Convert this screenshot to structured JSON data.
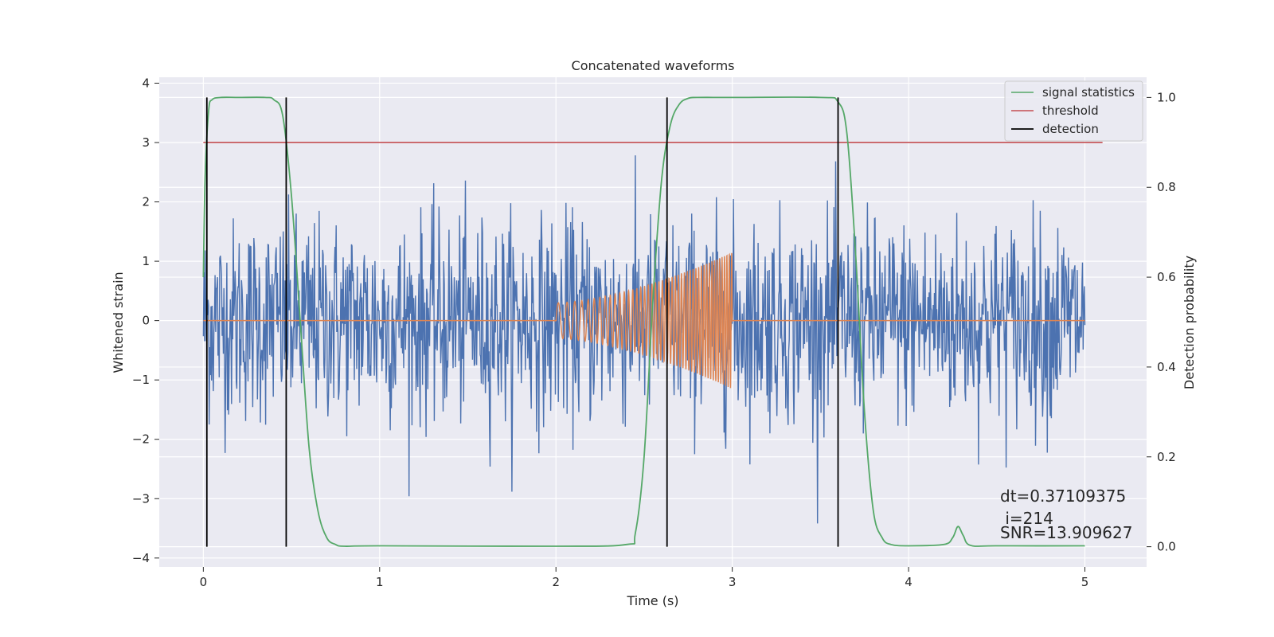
{
  "chart_data": {
    "type": "line",
    "title": "Concatenated waveforms",
    "xlabel": "Time (s)",
    "ylabel": "Whitened strain",
    "y2label": "Detection probability",
    "xlim": [
      -0.25,
      5.35
    ],
    "ylim": [
      -4.15,
      4.1
    ],
    "y2lim": [
      -0.045,
      1.045
    ],
    "xticks": [
      "0",
      "1",
      "2",
      "3",
      "4",
      "5"
    ],
    "yticks": [
      "4",
      "3",
      "2",
      "1",
      "0",
      "−1",
      "−2",
      "−3",
      "−4"
    ],
    "y2ticks": [
      "1.0",
      "0.8",
      "0.6",
      "0.4",
      "0.2",
      "0.0"
    ],
    "grid": true,
    "legend_position": "top-right",
    "series": [
      {
        "name": "",
        "color": "#4c72b0",
        "kind": "noise",
        "x_range": [
          0,
          5
        ],
        "amplitude_std": 0.85,
        "points": 1500
      },
      {
        "name": "",
        "color": "#dd8452",
        "kind": "chirp",
        "x_range": [
          0,
          5
        ],
        "chirp_start": 2.0,
        "chirp_end": 3.0,
        "amplitude_start": 0.3,
        "amplitude_end": 1.15,
        "freq_start": 18,
        "freq_end": 75
      },
      {
        "name": "signal statistics",
        "color": "#55a868",
        "axis": "right",
        "x": [
          0,
          0.01,
          0.03,
          0.05,
          0.1,
          0.2,
          0.35,
          0.4,
          0.45,
          0.5,
          0.55,
          0.6,
          0.65,
          0.7,
          0.75,
          0.8,
          1.0,
          2.0,
          2.4,
          2.45,
          2.5,
          2.55,
          2.6,
          2.65,
          2.7,
          2.75,
          2.8,
          3.0,
          3.5,
          3.6,
          3.65,
          3.7,
          3.75,
          3.8,
          3.85,
          3.9,
          4.0,
          4.2,
          4.25,
          4.28,
          4.31,
          4.35,
          4.5,
          5.0
        ],
        "y": [
          0.6,
          0.82,
          0.97,
          0.995,
          1.0,
          1.0,
          1.0,
          0.995,
          0.96,
          0.78,
          0.5,
          0.22,
          0.08,
          0.02,
          0.005,
          0.001,
          0.002,
          0.001,
          0.005,
          0.03,
          0.2,
          0.55,
          0.82,
          0.94,
          0.985,
          0.998,
          1.0,
          1.0,
          1.0,
          0.99,
          0.92,
          0.65,
          0.3,
          0.08,
          0.02,
          0.005,
          0.002,
          0.005,
          0.02,
          0.045,
          0.025,
          0.003,
          0.002,
          0.002
        ]
      },
      {
        "name": "threshold",
        "color": "#c44e52",
        "axis": "right",
        "x": [
          0,
          5.1
        ],
        "y": [
          0.9,
          0.9
        ]
      },
      {
        "name": "detection",
        "color": "#000000",
        "axis": "right",
        "x": [
          0.02,
          0.47,
          2.63,
          3.6
        ],
        "y_range": [
          0.0,
          1.0
        ]
      }
    ],
    "annotations": [
      "dt=0.37109375",
      " i=214",
      "SNR=13.909627"
    ]
  }
}
